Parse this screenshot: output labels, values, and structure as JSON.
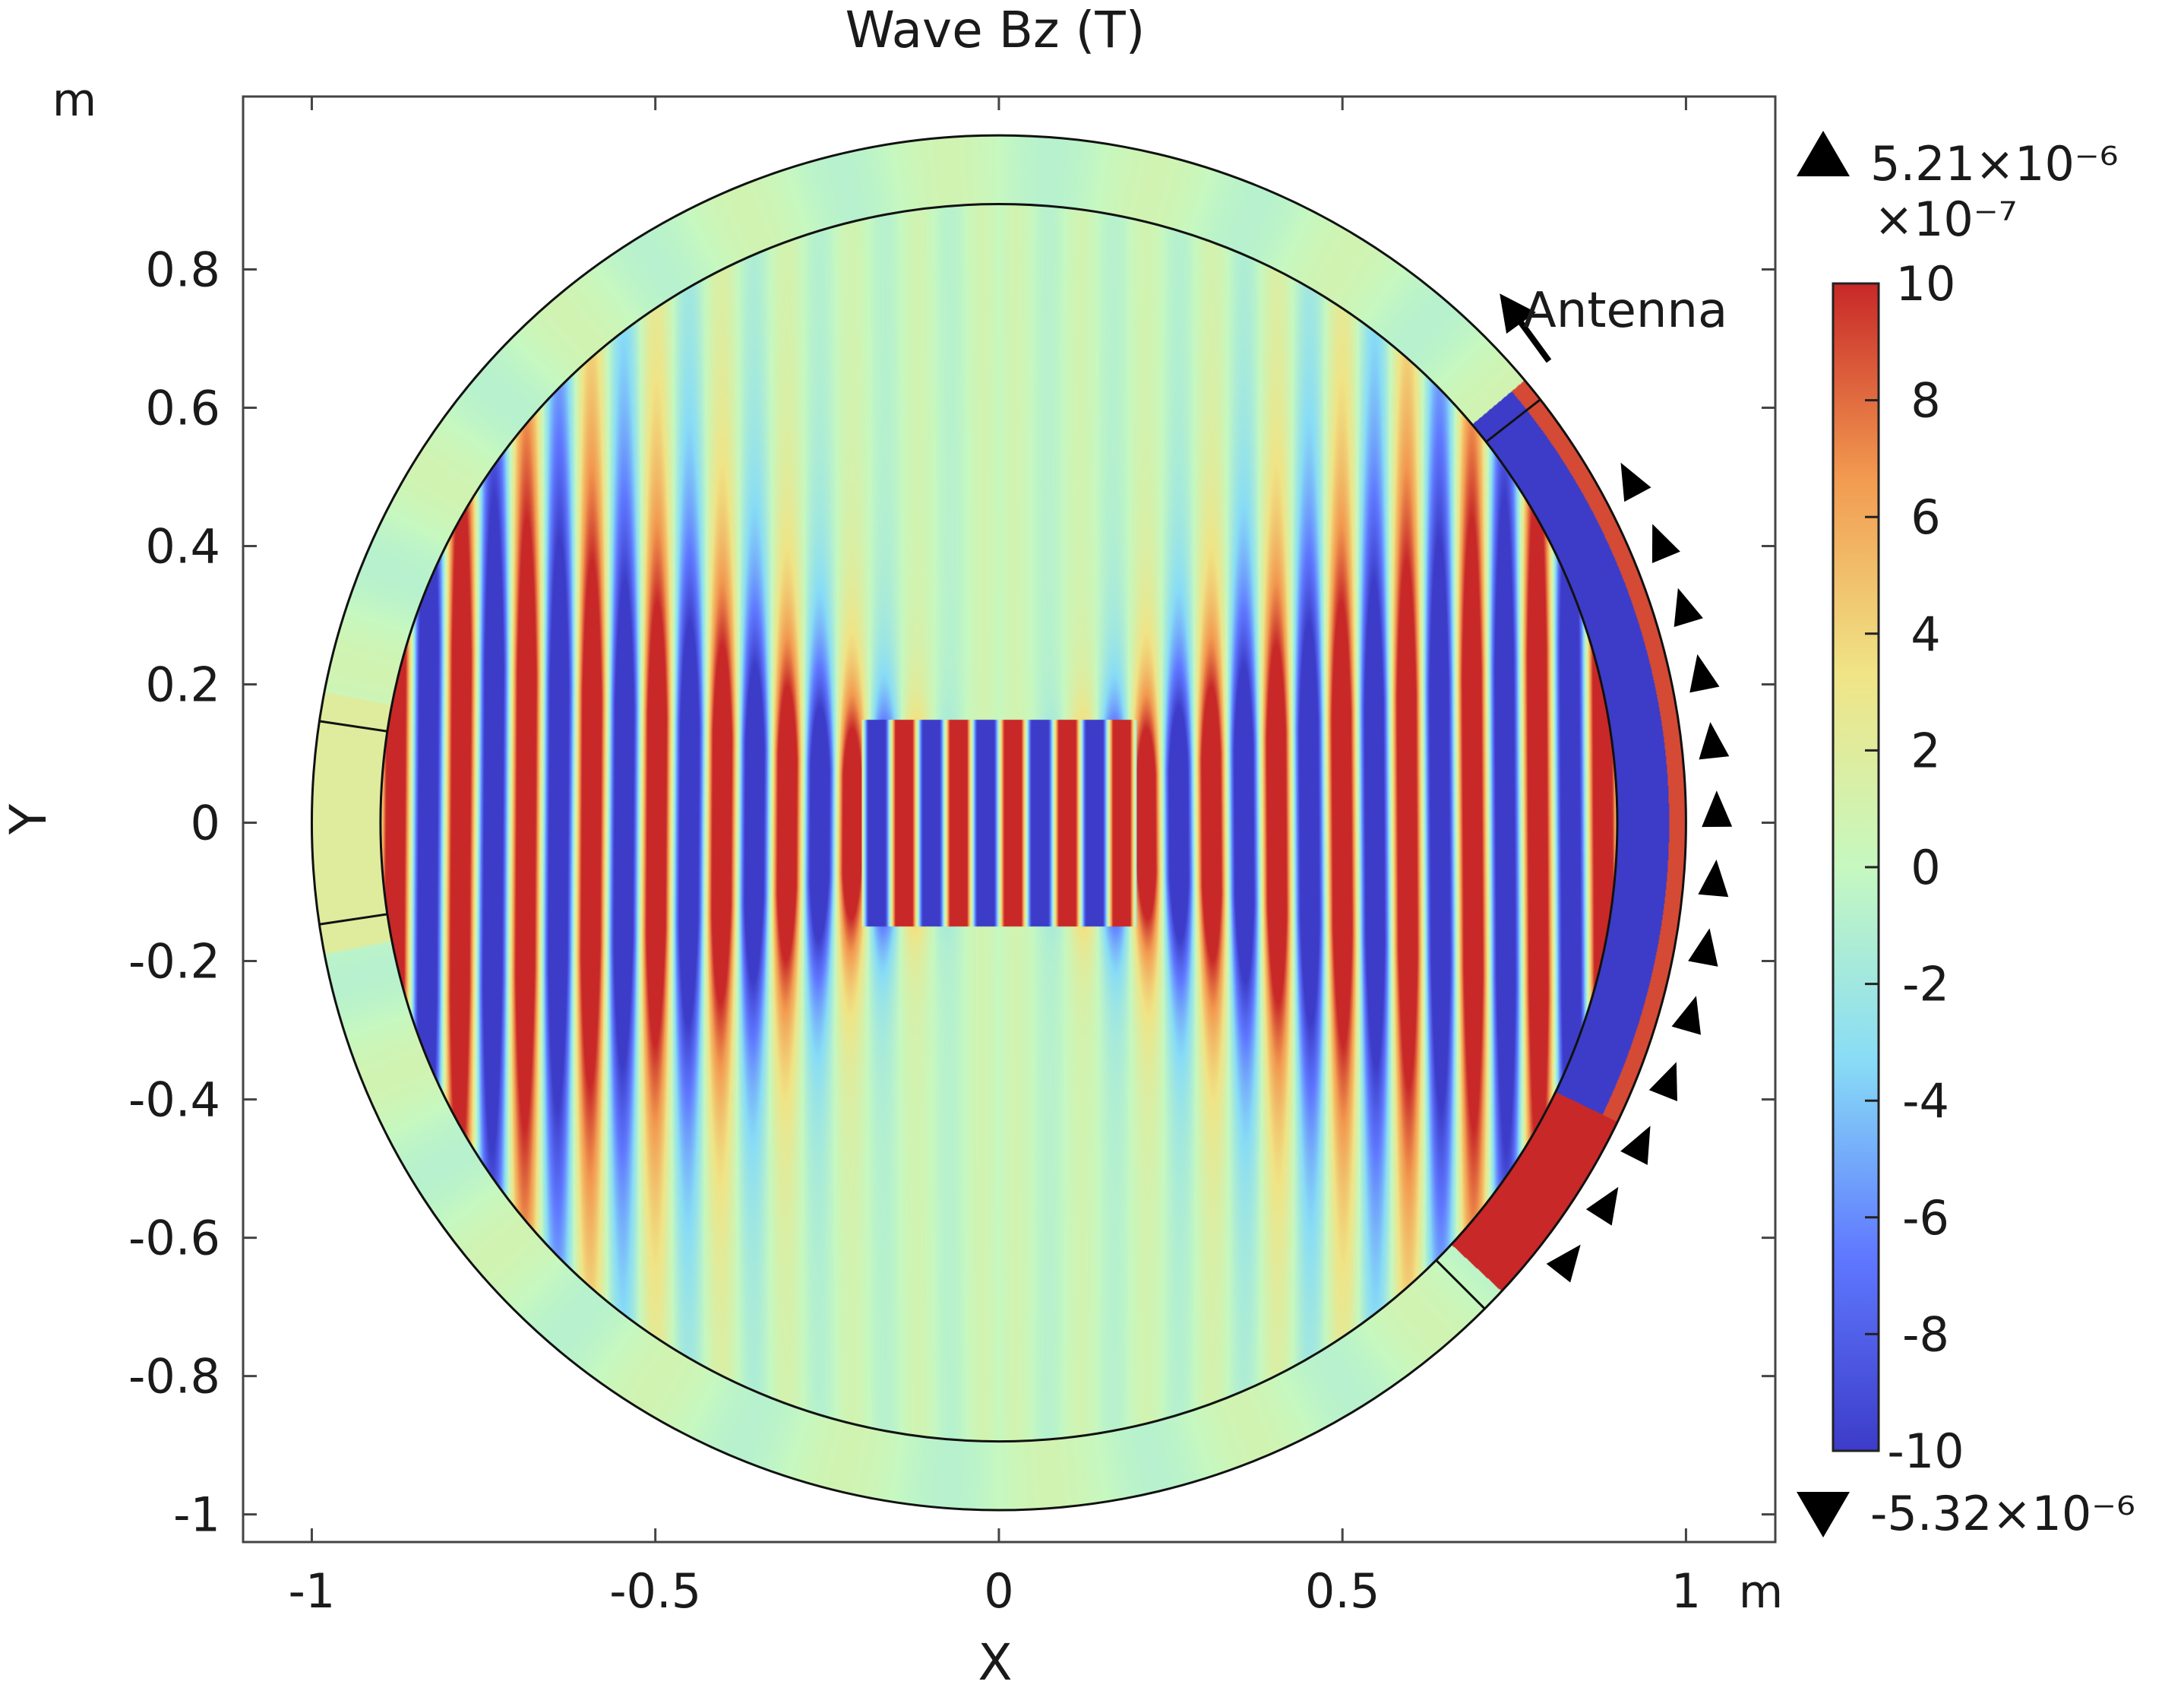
{
  "chart_data": {
    "type": "heatmap",
    "title": "Wave Bz (T)",
    "xlabel": "X",
    "ylabel": "Y",
    "x_unit": "m",
    "y_unit": "m",
    "xlim": [
      -1.1,
      1.13
    ],
    "ylim": [
      -1.04,
      1.05
    ],
    "x_ticks": [
      -1,
      -0.5,
      0,
      0.5,
      1
    ],
    "x_tick_labels": [
      "-1",
      "-0.5",
      "0",
      "0.5",
      "1"
    ],
    "y_ticks": [
      -1,
      -0.8,
      -0.6,
      -0.4,
      -0.2,
      0,
      0.2,
      0.4,
      0.6,
      0.8
    ],
    "y_tick_labels": [
      "-1",
      "-0.8",
      "-0.6",
      "-0.4",
      "-0.2",
      "0",
      "0.2",
      "0.4",
      "0.6",
      "0.8"
    ],
    "grid": false,
    "domain": {
      "outer_radius": 1.0,
      "inner_radius": 0.9,
      "left_port_angles_deg": [
        171.5,
        188.5
      ],
      "right_antenna_angles_deg": [
        -45,
        38
      ]
    },
    "colorbar": {
      "scale_label": "×10⁻⁷",
      "min": -10,
      "max": 10,
      "ticks": [
        10,
        8,
        6,
        4,
        2,
        0,
        -2,
        -4,
        -6,
        -8,
        -10
      ],
      "tick_labels": [
        "10",
        "8",
        "6",
        "4",
        "2",
        "0",
        "-2",
        "-4",
        "-6",
        "-8",
        "-10"
      ],
      "data_max_label": "5.21×10⁻⁶",
      "data_min_label": "-5.32×10⁻⁶",
      "colormap": [
        "#3c3cc8",
        "#5f78ff",
        "#88dcf6",
        "#c6f8c0",
        "#f0e486",
        "#f29a50",
        "#c82828"
      ]
    },
    "annotations": [
      {
        "text": "Antenna",
        "points_to": "right outer boundary",
        "arrow_direction": "counter-clockwise"
      }
    ]
  }
}
